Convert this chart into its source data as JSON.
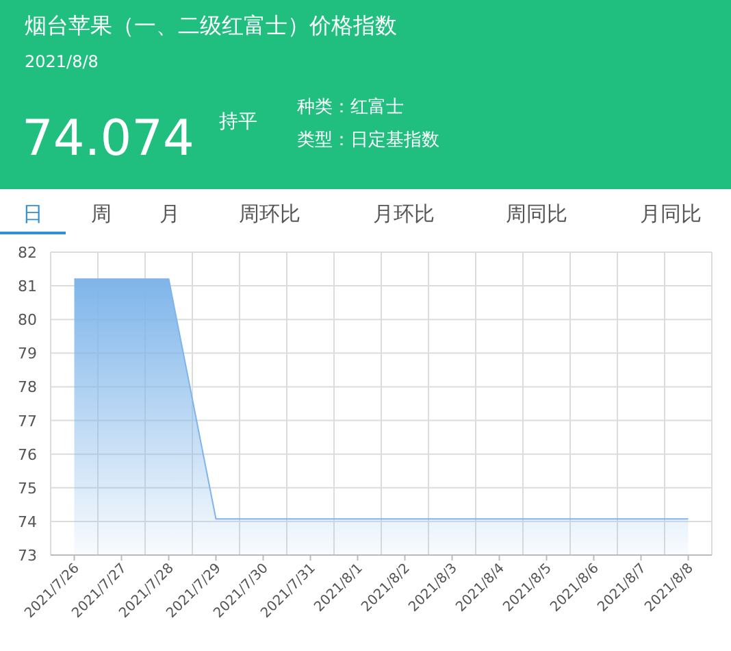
{
  "chart_data": {
    "type": "area",
    "title": "烟台苹果（一、二级红富士）价格指数",
    "subtitle": "2021/8/8",
    "annotations": [
      "74.074",
      "持平",
      "种类：红富士",
      "类型：日定基指数",
      "日",
      "周",
      "月",
      "周环比",
      "月环比",
      "周同比",
      "月同比"
    ],
    "categories": [
      "2021/7/26",
      "2021/7/27",
      "2021/7/28",
      "2021/7/29",
      "2021/7/30",
      "2021/7/31",
      "2021/8/1",
      "2021/8/2",
      "2021/8/3",
      "2021/8/4",
      "2021/8/5",
      "2021/8/6",
      "2021/8/7",
      "2021/8/8"
    ],
    "values": [
      81.2,
      81.2,
      81.2,
      74.074,
      74.074,
      74.074,
      74.074,
      74.074,
      74.074,
      74.074,
      74.074,
      74.074,
      74.074,
      74.074
    ],
    "color": "#7fb5ea",
    "ylim": [
      73,
      82
    ],
    "yticks": [
      73,
      74,
      75,
      76,
      77,
      78,
      79,
      80,
      81,
      82
    ],
    "grid": true
  }
}
